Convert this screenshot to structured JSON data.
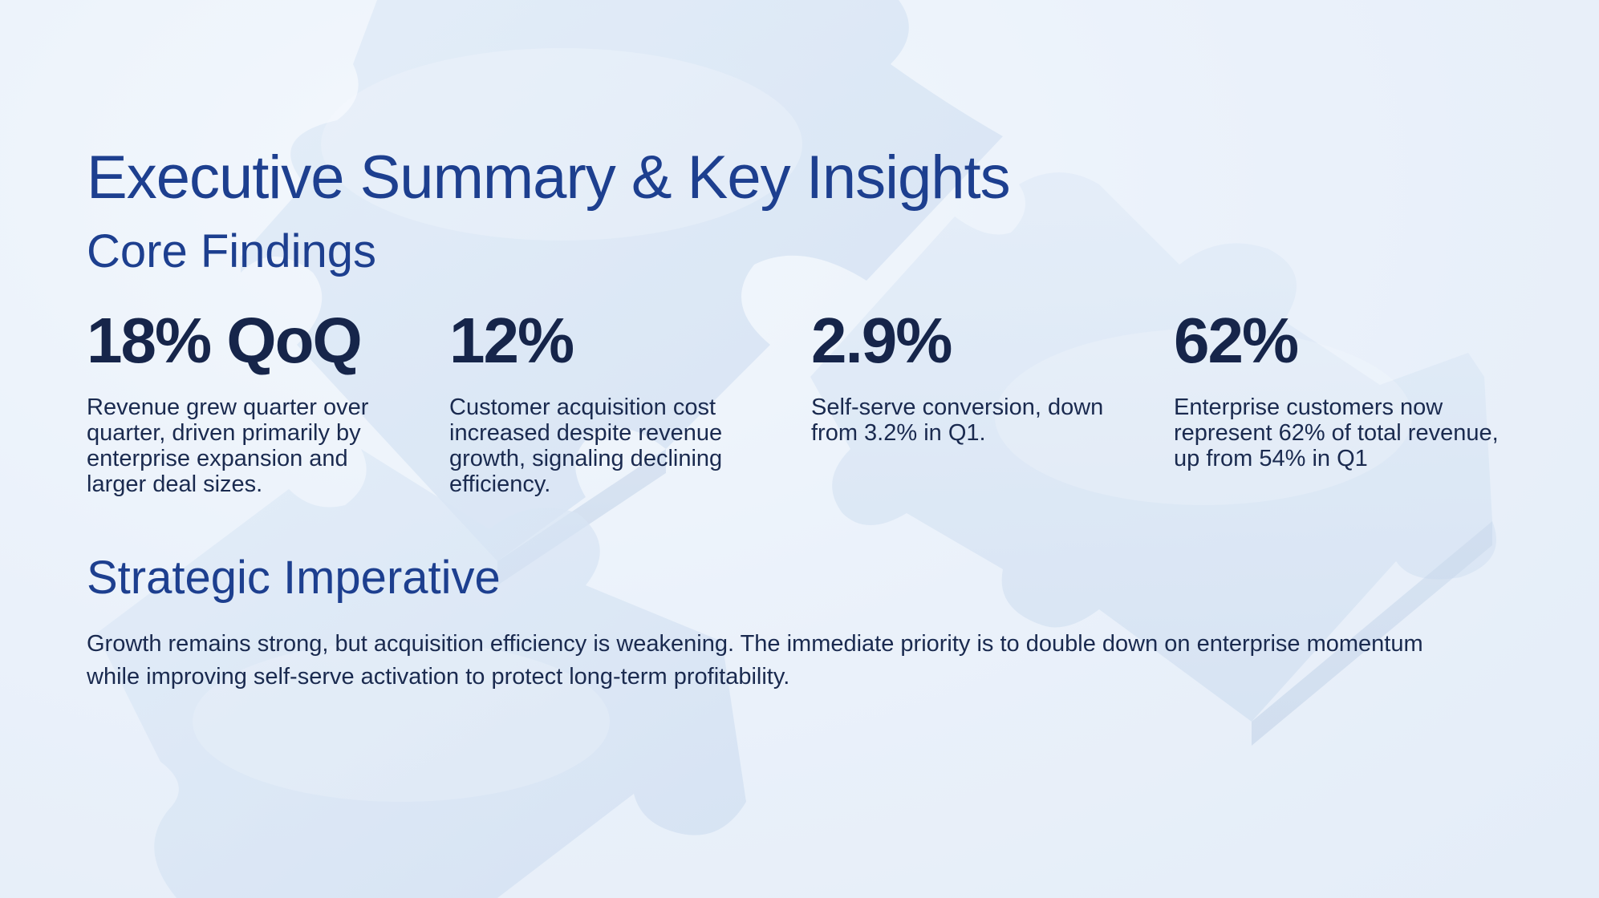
{
  "slide": {
    "title": "Executive Summary & Key Insights",
    "subtitle": "Core Findings",
    "stats": [
      {
        "value": "18% QoQ",
        "description": "Revenue grew quarter over quarter, driven primarily by enterprise expansion and larger deal sizes."
      },
      {
        "value": "12%",
        "description": "Customer acquisition cost increased despite revenue growth, signaling declining efficiency."
      },
      {
        "value": "2.9%",
        "description": "Self-serve conversion, down from 3.2% in Q1."
      },
      {
        "value": "62%",
        "description": "Enterprise customers now represent 62% of total revenue, up from 54% in Q1"
      }
    ],
    "section_title": "Strategic Imperative",
    "section_body": "Growth remains strong, but acquisition efficiency is weakening. The immediate priority is to double down on enterprise momentum while improving self-serve activation to protect long-term profitability."
  },
  "colors": {
    "heading": "#1d3f8f",
    "stat_value": "#16254a",
    "body_text": "#1a2a4f",
    "background": "#eaf1fa"
  },
  "background_image": "puzzle-pieces-illustration"
}
